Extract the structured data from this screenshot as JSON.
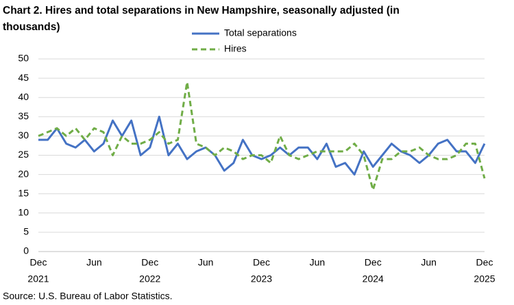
{
  "chart_data": {
    "type": "line",
    "title": "Chart 2. Hires and total separations in New Hampshire, seasonally adjusted (in thousands)",
    "source": "Source: U.S. Bureau of Labor Statistics.",
    "categories": [
      "Dec",
      null,
      null,
      null,
      null,
      null,
      "Jun",
      null,
      null,
      null,
      null,
      null,
      "Dec",
      null,
      null,
      null,
      null,
      null,
      "Jun",
      null,
      null,
      null,
      null,
      null,
      "Dec",
      null,
      null,
      null,
      null,
      null,
      "Jun",
      null,
      null,
      null,
      null,
      null,
      "Dec",
      null,
      null,
      null,
      null,
      null,
      "Jun",
      null,
      null,
      null,
      null,
      null,
      "Dec"
    ],
    "years": [
      "2021",
      null,
      null,
      null,
      null,
      null,
      null,
      null,
      null,
      null,
      null,
      null,
      "2022",
      null,
      null,
      null,
      null,
      null,
      null,
      null,
      null,
      null,
      null,
      null,
      "2023",
      null,
      null,
      null,
      null,
      null,
      null,
      null,
      null,
      null,
      null,
      null,
      "2024",
      null,
      null,
      null,
      null,
      null,
      null,
      null,
      null,
      null,
      null,
      null,
      "2025"
    ],
    "series": [
      {
        "name": "Total separations",
        "color": "#4472c4",
        "dashed": false,
        "values": [
          29,
          29,
          32,
          28,
          27,
          29,
          26,
          28,
          34,
          30,
          34,
          25,
          27,
          35,
          25,
          28,
          24,
          26,
          27,
          25,
          21,
          23,
          29,
          25,
          24,
          25,
          27,
          25,
          27,
          27,
          24,
          28,
          22,
          23,
          20,
          26,
          22,
          25,
          28,
          26,
          25,
          23,
          25,
          28,
          29,
          26,
          26,
          23,
          28
        ]
      },
      {
        "name": "Hires",
        "color": "#70ad47",
        "dashed": true,
        "values": [
          30,
          31,
          32,
          30,
          32,
          29,
          32,
          31,
          25,
          30,
          28,
          28,
          29,
          31,
          28,
          29,
          44,
          28,
          27,
          25,
          27,
          26,
          24,
          25,
          25,
          23,
          30,
          25,
          24,
          25,
          26,
          26,
          26,
          26,
          28,
          25,
          16,
          24,
          24,
          26,
          26,
          27,
          25,
          24,
          24,
          25,
          28,
          28,
          19
        ]
      }
    ],
    "ylim": [
      0,
      50
    ],
    "yticks": [
      0,
      5,
      10,
      15,
      20,
      25,
      30,
      35,
      40,
      45,
      50
    ],
    "grid": true
  }
}
